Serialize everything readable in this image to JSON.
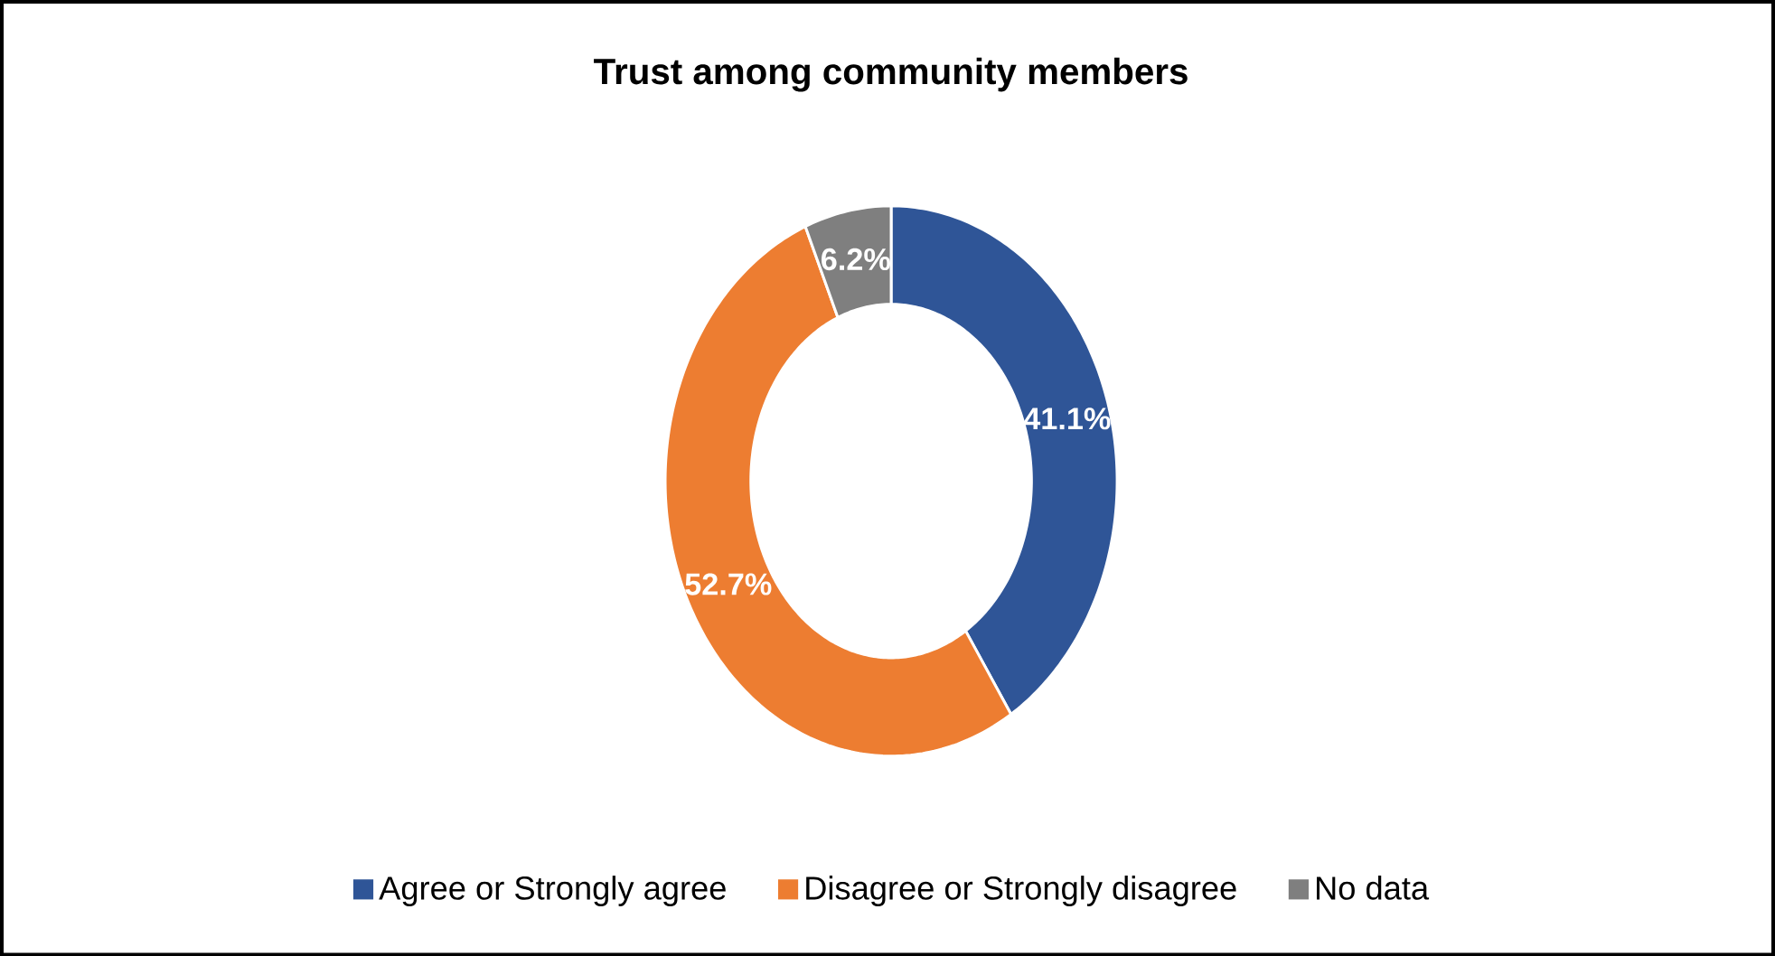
{
  "chart_data": {
    "type": "donut",
    "title": "Trust among community members",
    "categories": [
      "Agree or Strongly agree",
      "Disagree or Strongly disagree",
      "No data"
    ],
    "values": [
      41.1,
      52.7,
      6.2
    ],
    "colors": [
      "#2f5597",
      "#ed7d31",
      "#7f7f7f"
    ],
    "value_labels": [
      "41.1%",
      "52.7%",
      "6.2%"
    ],
    "legend": "bottom"
  }
}
